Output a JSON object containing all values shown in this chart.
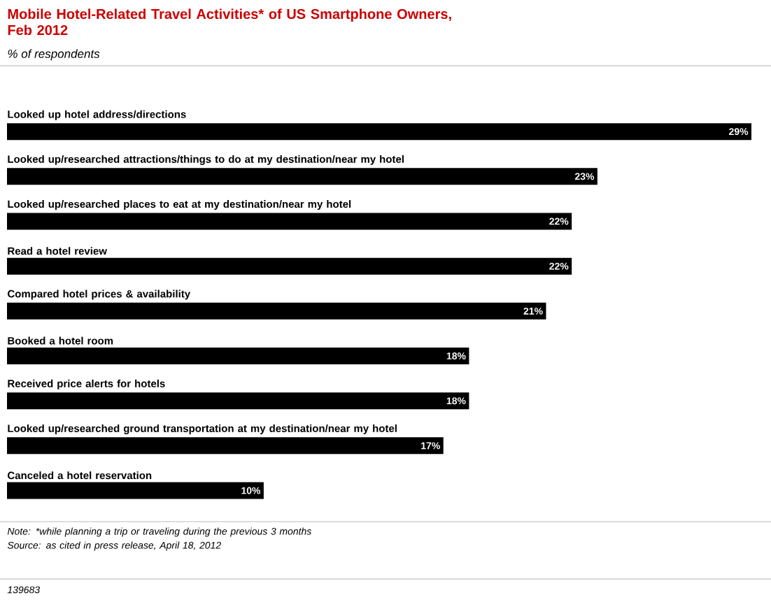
{
  "chart_data": {
    "type": "bar",
    "orientation": "horizontal",
    "title": "Mobile Hotel-Related Travel Activities* of US Smartphone Owners, Feb 2012",
    "subtitle": "% of respondents",
    "categories": [
      "Looked up hotel address/directions",
      "Looked up/researched attractions/things to do at my destination/near my hotel",
      "Looked up/researched places to eat at my destination/near my hotel",
      "Read a hotel review",
      "Compared hotel prices & availability",
      "Booked a hotel room",
      "Received price alerts for hotels",
      "Looked up/researched ground transportation at my destination/near my hotel",
      "Canceled a hotel reservation"
    ],
    "values": [
      29,
      23,
      22,
      22,
      21,
      18,
      18,
      17,
      10
    ],
    "value_labels": [
      "29%",
      "23%",
      "22%",
      "22%",
      "21%",
      "18%",
      "18%",
      "17%",
      "10%"
    ],
    "color": "#000000",
    "annotations": [
      "Note: *while planning a trip or traveling during the previous 3 months",
      "Source: as cited in press release, April 18, 2012",
      "139683"
    ]
  }
}
